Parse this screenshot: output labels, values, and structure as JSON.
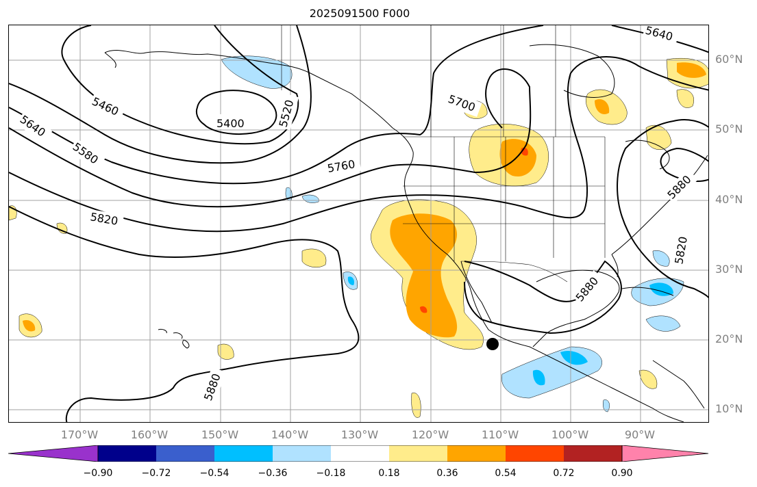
{
  "title": "2025091500 F000",
  "map": {
    "projection": "PlateCarree",
    "lon_range": [
      "180°W",
      "80°W"
    ],
    "lat_range": [
      "8°N",
      "65°N"
    ],
    "gridlines": true,
    "coastlines": true,
    "borders": true,
    "marker": {
      "symbol": "filled-circle",
      "color": "#000000",
      "lon": -110.9,
      "lat": 19.2
    }
  },
  "axes": {
    "lat_ticks": [
      "60°N",
      "50°N",
      "40°N",
      "30°N",
      "20°N",
      "10°N"
    ],
    "lon_ticks": [
      "170°W",
      "160°W",
      "150°W",
      "140°W",
      "130°W",
      "120°W",
      "110°W",
      "100°W",
      "90°W"
    ]
  },
  "contour_labels": [
    "5400",
    "5460",
    "5520",
    "5580",
    "5640",
    "5700",
    "5760",
    "5820",
    "5880",
    "5880",
    "5880",
    "5820",
    "5640"
  ],
  "colorbar": {
    "ticks": [
      "−0.90",
      "−0.72",
      "−0.54",
      "−0.36",
      "−0.18",
      "0.18",
      "0.36",
      "0.54",
      "0.72",
      "0.90"
    ],
    "colors": [
      "#9932cc",
      "#00008b",
      "#3a5fcd",
      "#00bfff",
      "#b0e2ff",
      "#ffffff",
      "#ffec8b",
      "#ffa500",
      "#ff4500",
      "#b22222",
      "#ff82ab"
    ],
    "extend": "both"
  },
  "colors": {
    "neg_light": "#b0e2ff",
    "neg_mid": "#00bfff",
    "pos_light": "#ffec8b",
    "pos_mid": "#ffa500",
    "pos_high": "#ff4500",
    "gridline": "#a0a0a0",
    "tick_label": "#808080"
  }
}
